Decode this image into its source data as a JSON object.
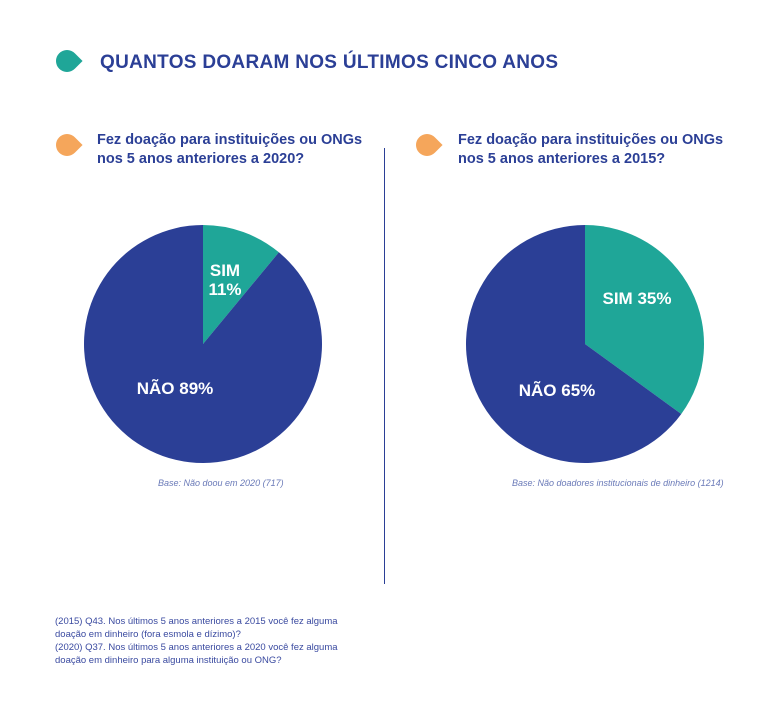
{
  "header": {
    "title": "QUANTOS DOARAM NOS ÚLTIMOS CINCO ANOS",
    "title_icon_color": "#1fa698"
  },
  "colors": {
    "teal": "#1fa698",
    "blue": "#2b3f96",
    "orange": "#f5a65b"
  },
  "chart_data": [
    {
      "type": "pie",
      "title_lines": [
        "Fez doação para instituições ou ONGs",
        "nos 5 anos anteriores a 2020?"
      ],
      "slices": [
        {
          "label": "SIM",
          "value": 11,
          "value_label": "11%",
          "color": "#1fa698"
        },
        {
          "label": "NÃO",
          "value": 89,
          "value_label": "NÃO 89%",
          "color": "#2b3f96"
        }
      ],
      "base_note": "Base: Não doou em 2020 (717)"
    },
    {
      "type": "pie",
      "title_lines": [
        "Fez doação para instituições ou ONGs",
        "nos 5 anos anteriores a 2015?"
      ],
      "slices": [
        {
          "label": "SIM",
          "value": 35,
          "value_label": "SIM 35%",
          "color": "#1fa698"
        },
        {
          "label": "NÃO",
          "value": 65,
          "value_label": "NÃO 65%",
          "color": "#2b3f96"
        }
      ],
      "base_note": "Base: Não doadores institucionais de dinheiro  (1214)"
    }
  ],
  "footnote": [
    "(2015) Q43. Nos últimos 5 anos anteriores a 2015 você fez alguma",
    "doação em dinheiro (fora esmola e dízimo)?",
    "(2020) Q37. Nos últimos 5 anos anteriores a 2020 você fez alguma",
    "doação em dinheiro para alguma instituição ou ONG?"
  ]
}
